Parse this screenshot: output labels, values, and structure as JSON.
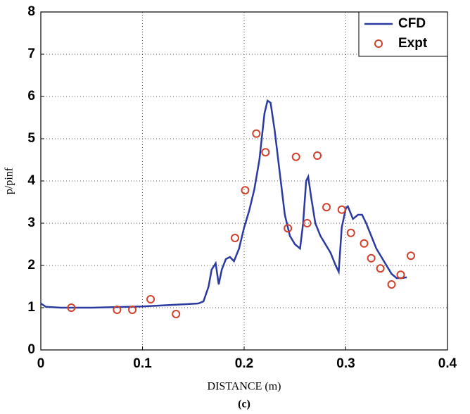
{
  "chart_data": {
    "type": "line",
    "xlabel": "DISTANCE (m)",
    "ylabel": "p/pinf",
    "caption": "(c)",
    "xlim": [
      0,
      0.4
    ],
    "xticks": [
      0,
      0.1,
      0.2,
      0.3,
      0.4
    ],
    "ylim": [
      0,
      8
    ],
    "yticks": [
      0,
      1,
      2,
      3,
      4,
      5,
      6,
      7,
      8
    ],
    "grid": true,
    "legend": "upper right",
    "series": [
      {
        "name": "CFD",
        "color": "#2b3aa0",
        "mode": "line",
        "x": [
          0,
          0.005,
          0.02,
          0.05,
          0.1,
          0.14,
          0.155,
          0.16,
          0.165,
          0.168,
          0.172,
          0.175,
          0.178,
          0.182,
          0.186,
          0.19,
          0.195,
          0.2,
          0.205,
          0.21,
          0.215,
          0.22,
          0.223,
          0.226,
          0.23,
          0.235,
          0.24,
          0.245,
          0.25,
          0.255,
          0.258,
          0.261,
          0.263,
          0.266,
          0.27,
          0.275,
          0.28,
          0.285,
          0.29,
          0.293,
          0.296,
          0.3,
          0.302,
          0.307,
          0.312,
          0.316,
          0.32,
          0.325,
          0.33,
          0.335,
          0.34,
          0.345,
          0.35,
          0.355,
          0.36
        ],
        "values": [
          1.1,
          1.02,
          1.0,
          1.0,
          1.03,
          1.08,
          1.1,
          1.15,
          1.5,
          1.9,
          2.05,
          1.55,
          1.9,
          2.15,
          2.2,
          2.1,
          2.4,
          2.9,
          3.3,
          3.8,
          4.5,
          5.6,
          5.9,
          5.85,
          5.2,
          4.2,
          3.2,
          2.7,
          2.5,
          2.4,
          3.0,
          4.0,
          4.1,
          3.6,
          3.0,
          2.7,
          2.5,
          2.3,
          2.0,
          1.85,
          2.9,
          3.35,
          3.4,
          3.1,
          3.2,
          3.2,
          3.0,
          2.7,
          2.4,
          2.2,
          2.0,
          1.8,
          1.7,
          1.7,
          1.72
        ]
      },
      {
        "name": "Expt",
        "color": "#d0402a",
        "mode": "marker",
        "x": [
          0.03,
          0.075,
          0.09,
          0.108,
          0.133,
          0.191,
          0.201,
          0.212,
          0.221,
          0.243,
          0.251,
          0.262,
          0.272,
          0.281,
          0.296,
          0.305,
          0.318,
          0.325,
          0.334,
          0.345,
          0.354,
          0.364
        ],
        "values": [
          1.0,
          0.95,
          0.95,
          1.2,
          0.85,
          2.65,
          3.78,
          5.12,
          4.68,
          2.88,
          4.57,
          3.0,
          4.6,
          3.38,
          3.32,
          2.77,
          2.52,
          2.17,
          1.93,
          1.55,
          1.78,
          2.23
        ]
      }
    ]
  }
}
